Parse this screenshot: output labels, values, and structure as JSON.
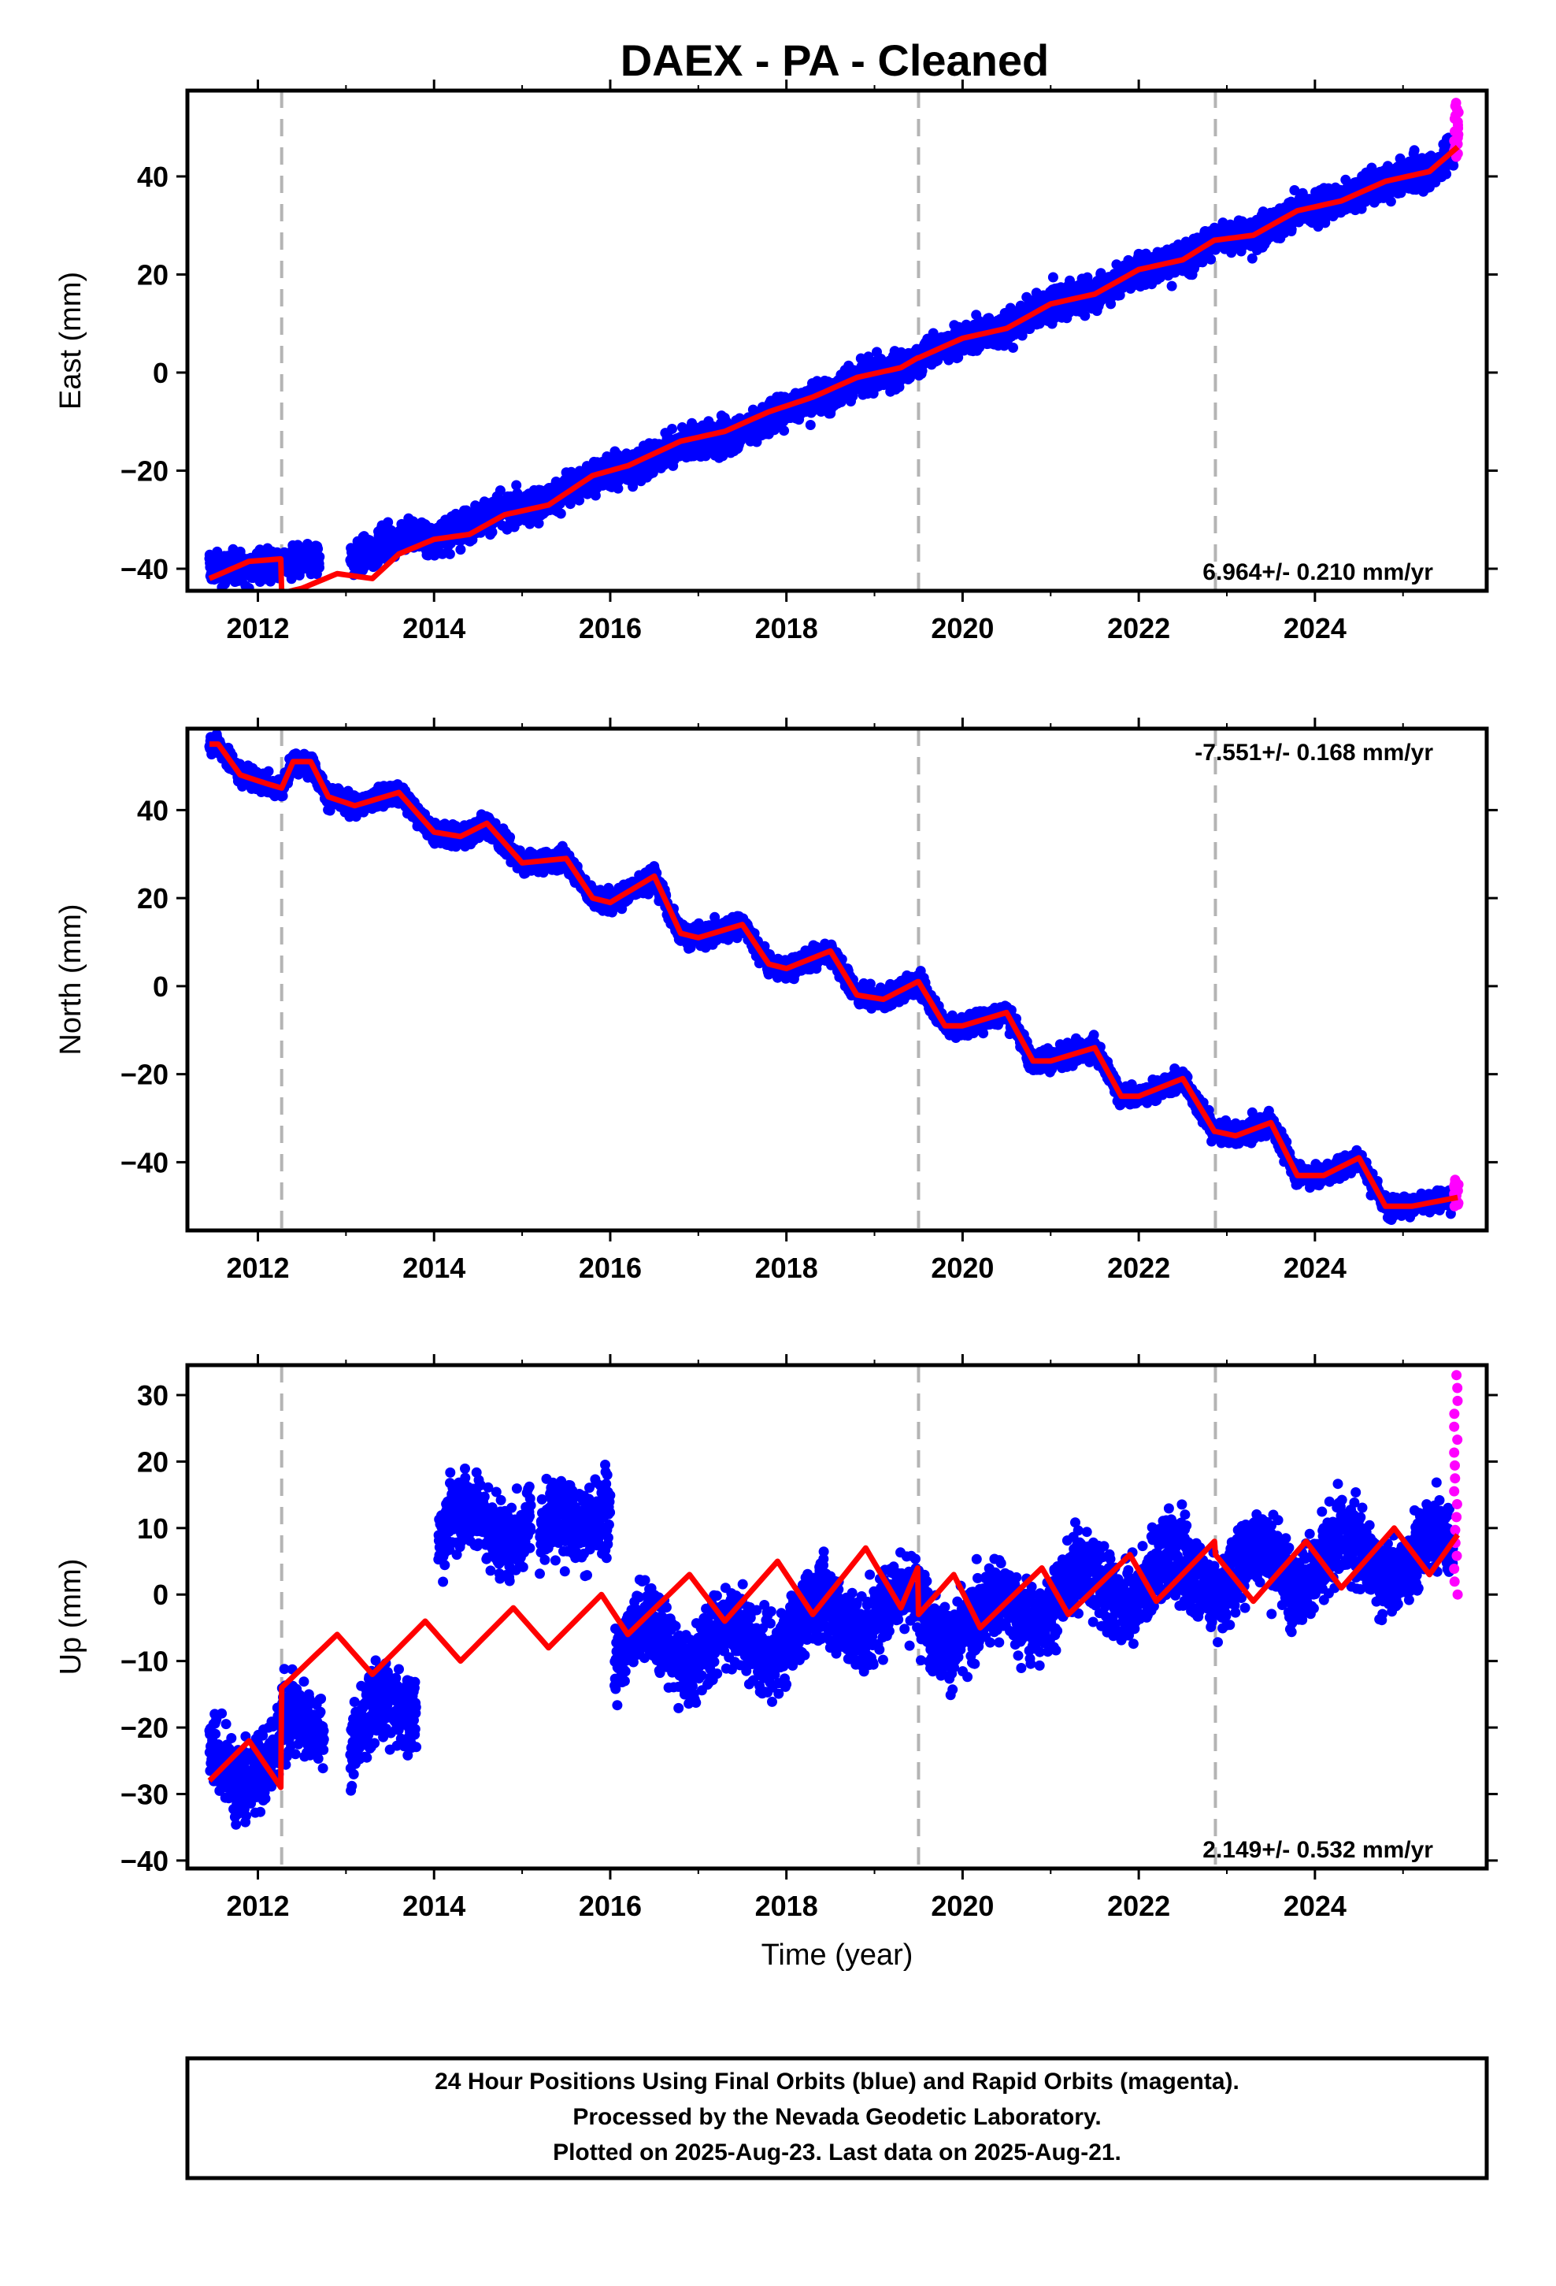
{
  "chart_data": {
    "type": "scatter",
    "title": "DAEX  - PA - Cleaned",
    "xlabel": "Time (year)",
    "xlim": [
      2011.2,
      2025.95
    ],
    "x_ticks": [
      2012,
      2014,
      2016,
      2018,
      2020,
      2022,
      2024
    ],
    "x_tick_labels": [
      "2012",
      "2014",
      "2016",
      "2018",
      "2020",
      "2022",
      "2024"
    ],
    "breaks": [
      2012.27,
      2019.5,
      2022.87
    ],
    "grid": false,
    "colors": {
      "final": "#0000ff",
      "rapid": "#ff00ff",
      "model": "#ff0000",
      "breaks": "#b4b4b4"
    },
    "panels": [
      {
        "ylabel": "East (mm)",
        "ylim": [
          -44.5,
          57.5
        ],
        "y_ticks": [
          -40,
          -20,
          0,
          20,
          40
        ],
        "y_tick_labels": [
          "−40",
          "−20",
          "0",
          "20",
          "40"
        ],
        "rate_label": "6.964+/- 0.210 mm/yr",
        "rate_position": "bottom-right",
        "model": {
          "x": [
            2011.45,
            2011.9,
            2012.26,
            2012.27,
            2012.5,
            2012.9,
            2013.3,
            2013.6,
            2014.0,
            2014.4,
            2014.8,
            2015.3,
            2015.8,
            2016.2,
            2016.8,
            2017.3,
            2017.8,
            2018.3,
            2018.8,
            2019.3,
            2019.49,
            2019.5,
            2020.0,
            2020.5,
            2021.0,
            2021.5,
            2022.0,
            2022.5,
            2022.86,
            2022.87,
            2023.3,
            2023.8,
            2024.3,
            2024.8,
            2025.3,
            2025.62
          ],
          "y": [
            -42,
            -38.5,
            -38,
            -45,
            -44,
            -41,
            -42,
            -37,
            -34,
            -33,
            -29,
            -27,
            -21,
            -19,
            -14,
            -12,
            -8,
            -5,
            -1,
            1,
            3,
            3,
            7,
            9,
            14,
            16,
            21,
            23,
            27,
            27,
            28,
            33,
            35,
            39,
            41,
            46
          ]
        },
        "final": {
          "segments": [
            [
              2011.45,
              2012.25
            ],
            [
              2012.3,
              2012.7
            ],
            [
              2013.05,
              2019.49
            ],
            [
              2019.5,
              2022.86
            ],
            [
              2022.87,
              2025.58
            ]
          ],
          "trend": [
            [
              2011.45,
              -40
            ],
            [
              2012.25,
              -39
            ],
            [
              2012.7,
              -38
            ],
            [
              2013.1,
              -38
            ],
            [
              2013.7,
              -33
            ],
            [
              2014.0,
              -34
            ],
            [
              2014.6,
              -29
            ],
            [
              2015.2,
              -27
            ],
            [
              2015.8,
              -21
            ],
            [
              2016.3,
              -19
            ],
            [
              2016.9,
              -14
            ],
            [
              2017.4,
              -13
            ],
            [
              2017.9,
              -8
            ],
            [
              2018.4,
              -5
            ],
            [
              2018.9,
              -1
            ],
            [
              2019.4,
              1
            ],
            [
              2019.5,
              3
            ],
            [
              2020.0,
              7
            ],
            [
              2020.5,
              9
            ],
            [
              2021.0,
              14
            ],
            [
              2021.5,
              16
            ],
            [
              2022.0,
              21
            ],
            [
              2022.5,
              23
            ],
            [
              2022.86,
              27
            ],
            [
              2022.87,
              27
            ],
            [
              2023.3,
              28
            ],
            [
              2023.8,
              33
            ],
            [
              2024.3,
              35
            ],
            [
              2024.8,
              39
            ],
            [
              2025.3,
              41
            ],
            [
              2025.58,
              45
            ]
          ],
          "scatter_mm": 2.2
        },
        "rapid": {
          "x_range": [
            2025.58,
            2025.63
          ],
          "y_range": [
            44,
            55
          ]
        }
      },
      {
        "ylabel": "North (mm)",
        "ylim": [
          -55.5,
          58.5
        ],
        "y_ticks": [
          -40,
          -20,
          0,
          20,
          40
        ],
        "y_tick_labels": [
          "−40",
          "−20",
          "0",
          "20",
          "40"
        ],
        "rate_label": "-7.551+/- 0.168 mm/yr",
        "rate_position": "top-right",
        "model": {
          "x": [
            2011.45,
            2011.55,
            2011.8,
            2012.1,
            2012.27,
            2012.4,
            2012.6,
            2012.8,
            2013.1,
            2013.6,
            2014.0,
            2014.3,
            2014.6,
            2015.0,
            2015.5,
            2015.8,
            2016.0,
            2016.5,
            2016.8,
            2017.0,
            2017.5,
            2017.8,
            2018.0,
            2018.5,
            2018.8,
            2019.1,
            2019.49,
            2019.5,
            2019.8,
            2020.0,
            2020.5,
            2020.8,
            2021.0,
            2021.5,
            2021.8,
            2022.0,
            2022.5,
            2022.86,
            2022.87,
            2023.1,
            2023.5,
            2023.8,
            2024.1,
            2024.5,
            2024.8,
            2025.1,
            2025.62
          ],
          "y": [
            55,
            55,
            48,
            46,
            45,
            51,
            51,
            43,
            41,
            44,
            35,
            34,
            37,
            28,
            29,
            20,
            19,
            25,
            12,
            11,
            14,
            5,
            4,
            8,
            -2,
            -3,
            1,
            1,
            -9,
            -9,
            -6,
            -17,
            -17,
            -14,
            -25,
            -25,
            -21,
            -33,
            -33,
            -34,
            -31,
            -43,
            -43,
            -39,
            -50,
            -50,
            -48
          ]
        },
        "final": {
          "segments": [
            [
              2011.45,
              2019.49
            ],
            [
              2019.5,
              2022.86
            ],
            [
              2022.87,
              2025.58
            ]
          ],
          "scatter_mm": 1.6
        },
        "rapid": {
          "x_range": [
            2025.58,
            2025.63
          ],
          "y_range": [
            -50,
            -44
          ]
        }
      },
      {
        "ylabel": "Up (mm)",
        "ylim": [
          -41.2,
          34.5
        ],
        "y_ticks": [
          -40,
          -30,
          -20,
          -10,
          0,
          10,
          20,
          30
        ],
        "y_tick_labels": [
          "−40",
          "−30",
          "−20",
          "−10",
          "0",
          "10",
          "20",
          "30"
        ],
        "rate_label": "2.149+/- 0.532 mm/yr",
        "rate_position": "bottom-right",
        "model": {
          "x": [
            2011.45,
            2011.9,
            2012.26,
            2012.27,
            2012.9,
            2013.3,
            2013.9,
            2014.3,
            2014.9,
            2015.3,
            2015.9,
            2016.2,
            2016.9,
            2017.3,
            2017.9,
            2018.3,
            2018.9,
            2019.3,
            2019.49,
            2019.5,
            2019.9,
            2020.2,
            2020.9,
            2021.2,
            2021.9,
            2022.2,
            2022.86,
            2022.87,
            2023.3,
            2023.9,
            2024.3,
            2024.9,
            2025.3,
            2025.62
          ],
          "y": [
            -28,
            -22,
            -29,
            -14,
            -6,
            -12,
            -4,
            -10,
            -2,
            -8,
            0,
            -6,
            3,
            -4,
            5,
            -3,
            7,
            -2,
            4,
            -3,
            3,
            -5,
            4,
            -3,
            6,
            -1,
            8,
            6,
            -1,
            8,
            1,
            10,
            3,
            9
          ]
        },
        "final": {
          "segments": [
            [
              2011.45,
              2012.25
            ],
            [
              2012.27,
              2012.75
            ],
            [
              2013.05,
              2013.8
            ],
            [
              2014.05,
              2015.1
            ],
            [
              2015.2,
              2016.0
            ],
            [
              2016.05,
              2019.49
            ],
            [
              2019.5,
              2022.86
            ],
            [
              2022.87,
              2025.58
            ]
          ],
          "trend": [
            [
              2011.45,
              -25
            ],
            [
              2012.25,
              -25
            ],
            [
              2012.27,
              -22
            ],
            [
              2012.75,
              -18
            ],
            [
              2013.05,
              -23
            ],
            [
              2013.8,
              -15
            ],
            [
              2014.05,
              9
            ],
            [
              2015.1,
              12
            ],
            [
              2015.2,
              7
            ],
            [
              2016.0,
              16
            ],
            [
              2016.05,
              -10
            ],
            [
              2016.6,
              -6
            ],
            [
              2017.2,
              -8
            ],
            [
              2017.8,
              -6
            ],
            [
              2018.4,
              -4
            ],
            [
              2019.0,
              -2
            ],
            [
              2019.49,
              -3
            ],
            [
              2019.5,
              -3
            ],
            [
              2020.2,
              -5
            ],
            [
              2021.0,
              0
            ],
            [
              2022.0,
              2
            ],
            [
              2022.86,
              4
            ],
            [
              2022.87,
              3
            ],
            [
              2024.0,
              5
            ],
            [
              2025.58,
              6
            ]
          ],
          "scatter_mm": 4.0
        },
        "rapid": {
          "x_range": [
            2025.58,
            2025.63
          ],
          "y_range": [
            0,
            33
          ]
        }
      }
    ]
  },
  "footer": {
    "lines": [
      "24 Hour Positions Using Final Orbits (blue) and Rapid Orbits (magenta).",
      "Processed by the Nevada Geodetic Laboratory.",
      "Plotted on 2025-Aug-23. Last data on 2025-Aug-21."
    ]
  }
}
